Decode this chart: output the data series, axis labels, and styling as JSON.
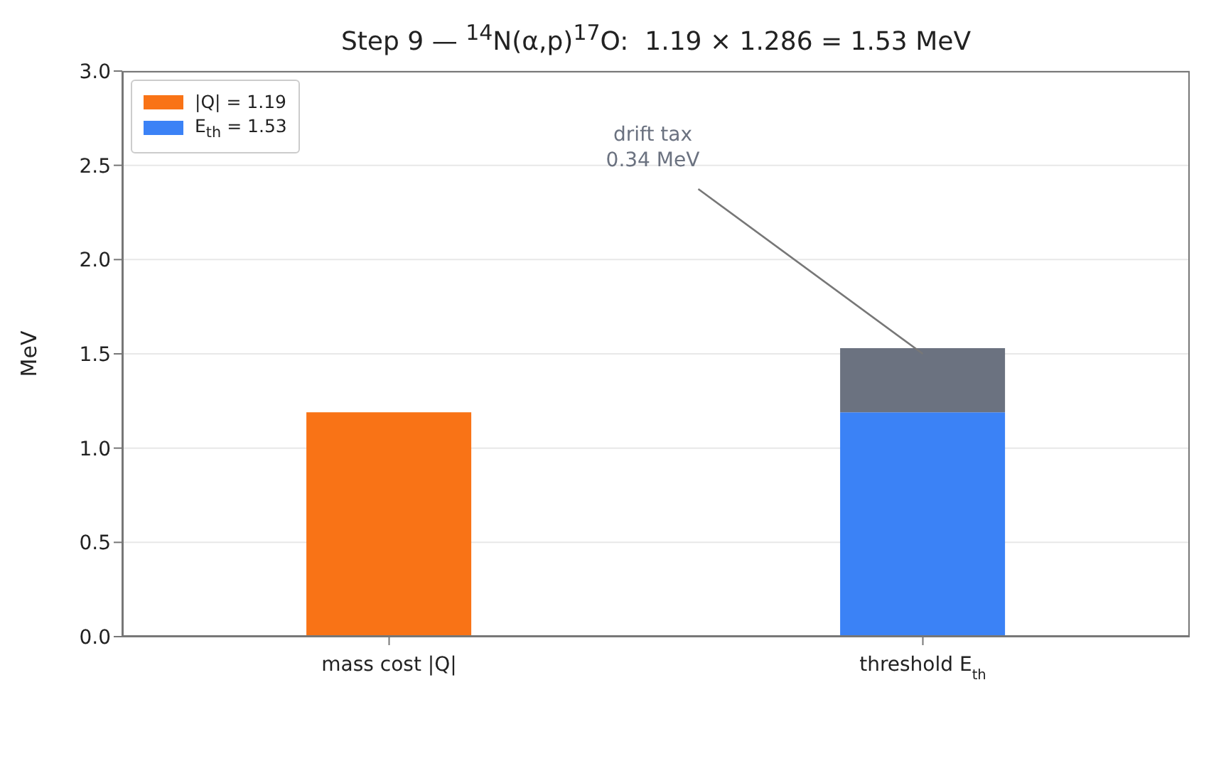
{
  "chart_data": {
    "type": "bar",
    "title": "Step 9 — $^{14}$N(α,p)$^{17}$O:  1.19 × 1.286 = 1.53 MeV",
    "ylabel": "MeV",
    "categories": [
      "mass cost |Q|",
      "threshold E$_{th}$"
    ],
    "series": [
      {
        "name": "|Q| = 1.19",
        "color": "#f97316",
        "values": [
          1.19,
          null
        ]
      },
      {
        "name": "E$_{th}$ = 1.53",
        "color": "#3b82f6",
        "values": [
          null,
          1.19
        ]
      },
      {
        "color": "#6b7280",
        "values": [
          null,
          0.34
        ]
      }
    ],
    "stacked": true,
    "ylim": [
      0,
      3
    ],
    "yticks": [
      {
        "value": 0,
        "label": "0.0"
      },
      {
        "value": 0.5,
        "label": "0.5"
      },
      {
        "value": 1,
        "label": "1.0"
      },
      {
        "value": 1.5,
        "label": "1.5"
      },
      {
        "value": 2,
        "label": "2.0"
      },
      {
        "value": 2.5,
        "label": "2.5"
      },
      {
        "value": 3,
        "label": "3.0"
      }
    ],
    "grid": "y",
    "legend": "top left",
    "annotations": [
      {
        "text": "drift tax\n0.34 MeV",
        "x": "threshold E$_{th}$",
        "y": 1.5
      }
    ]
  }
}
